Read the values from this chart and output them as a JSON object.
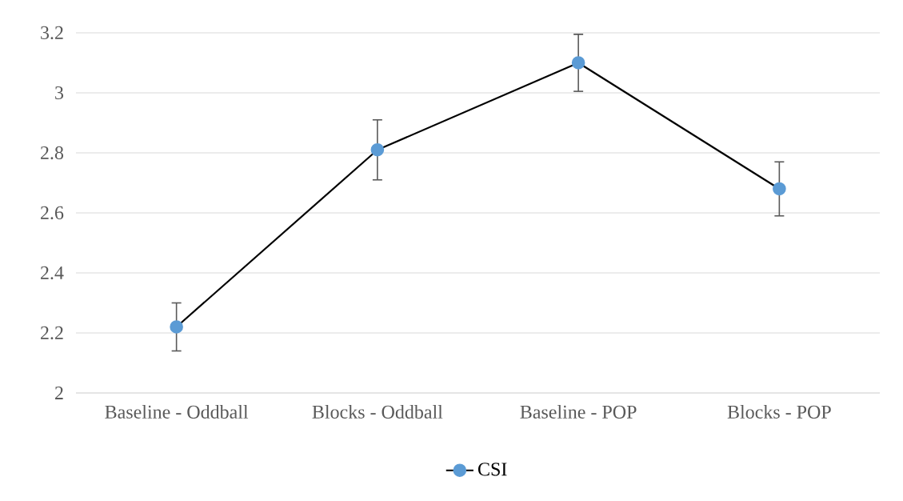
{
  "chart_data": {
    "type": "line",
    "categories": [
      "Baseline - Oddball",
      "Blocks - Oddball",
      "Baseline - POP",
      "Blocks - POP"
    ],
    "series": [
      {
        "name": "CSI",
        "color": "#5b9bd5",
        "values": [
          2.22,
          2.81,
          3.1,
          2.68
        ],
        "errors": [
          0.08,
          0.1,
          0.095,
          0.09
        ]
      }
    ],
    "ylim": [
      2,
      3.2
    ],
    "yticks": [
      2,
      2.2,
      2.4,
      2.6,
      2.8,
      3,
      3.2
    ],
    "grid": "y",
    "legend": "bottom",
    "marker": "circle",
    "line_style": "solid"
  }
}
